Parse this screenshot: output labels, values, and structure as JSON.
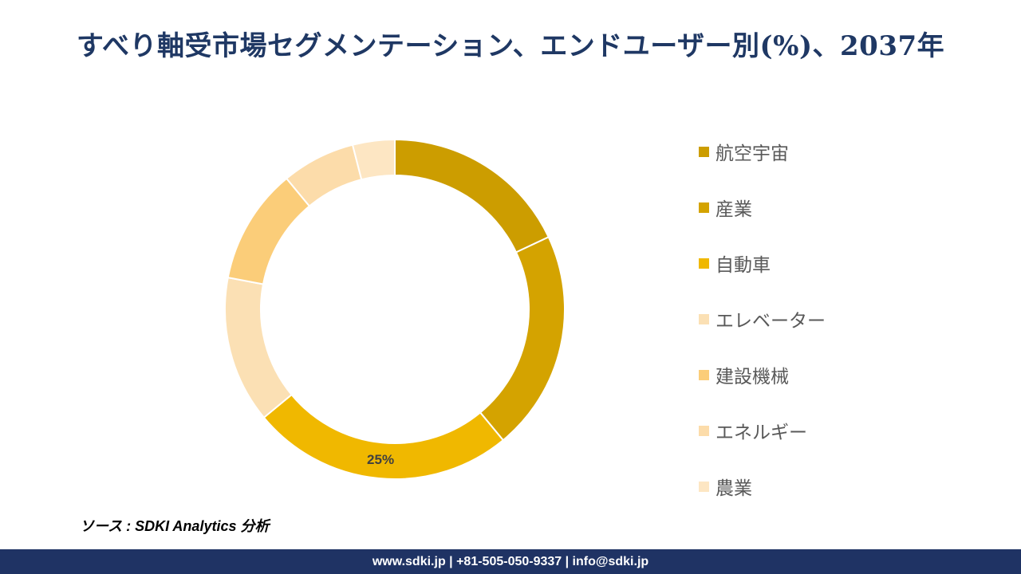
{
  "title": "すべり軸受市場セグメンテーション、エンドユーザー別(%)、2037年",
  "source": "ソース : SDKI Analytics 分析",
  "footer": "www.sdki.jp | +81-505-050-9337 | info@sdki.jp",
  "chart_data": {
    "type": "pie",
    "donut": true,
    "categories": [
      "航空宇宙",
      "産業",
      "自動車",
      "エレベーター",
      "建設機械",
      "エネルギー",
      "農業"
    ],
    "values": [
      18,
      21,
      25,
      14,
      11,
      7,
      4
    ],
    "colors": [
      "#cc9d00",
      "#d4a300",
      "#f0b800",
      "#fbe0b4",
      "#fbcd79",
      "#fcdcaa",
      "#fde6c3"
    ],
    "data_labels": [
      "",
      "",
      "25%",
      "",
      "",
      "",
      ""
    ],
    "legend_position": "right"
  }
}
